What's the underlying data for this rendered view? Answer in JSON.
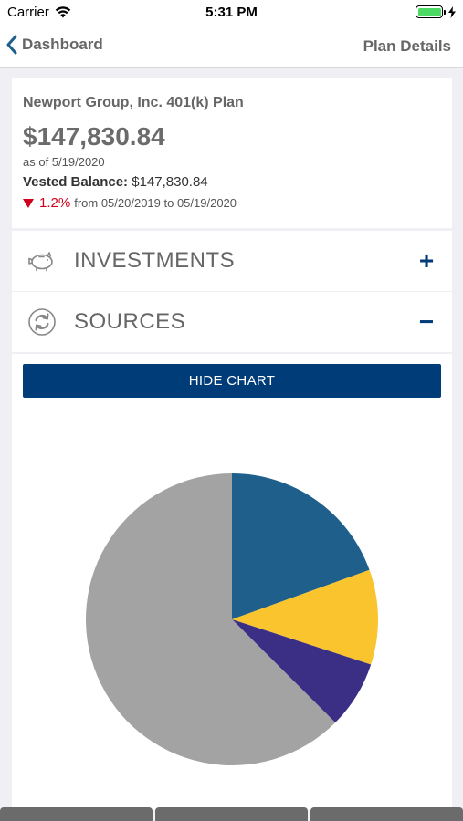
{
  "status_bar": {
    "carrier": "Carrier",
    "time": "5:31 PM",
    "battery_level": 1.0
  },
  "nav": {
    "back_label": "Dashboard",
    "right_label": "Plan Details"
  },
  "summary": {
    "plan_name": "Newport Group, Inc. 401(k) Plan",
    "balance": "$147,830.84",
    "as_of": "as of 5/19/2020",
    "vested_label": "Vested Balance:",
    "vested_value": "$147,830.84",
    "change_pct": "1.2%",
    "change_range": "from 05/20/2019 to 05/19/2020"
  },
  "sections": {
    "investments": {
      "label": "INVESTMENTS",
      "toggle": "+",
      "icon": "piggy-bank-icon"
    },
    "sources": {
      "label": "SOURCES",
      "toggle": "−",
      "icon": "refresh-cycle-icon"
    }
  },
  "chart": {
    "button_label": "HIDE CHART"
  },
  "chart_data": {
    "type": "pie",
    "slices": [
      {
        "value": 19.5,
        "color": "#1e5f8c"
      },
      {
        "value": 10.5,
        "color": "#f9c42e"
      },
      {
        "value": 7.5,
        "color": "#3b2f85"
      },
      {
        "value": 62.5,
        "color": "#a3a3a3"
      }
    ]
  },
  "bottom_tabs": [
    "",
    "",
    ""
  ]
}
